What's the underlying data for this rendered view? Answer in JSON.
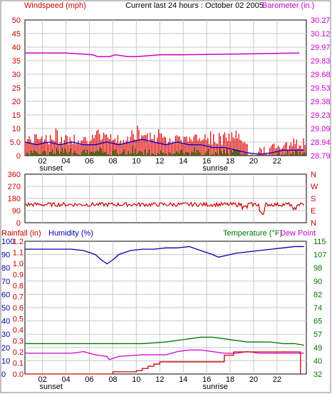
{
  "header": {
    "left_label": "Windspeed (mph)",
    "title": "Current last 24 hours : October 02 2005",
    "right_label": "Barometer (in.)"
  },
  "colors": {
    "windspeed": "#dd0000",
    "windgust_fill": "#007700",
    "wind_avg": "#0000cc",
    "barometer": "#cc00cc",
    "direction": "#cc0000",
    "humidity": "#0000aa",
    "temperature": "#007700",
    "dewpoint": "#cc00cc",
    "rainfall": "#cc0000",
    "grid": "#c8c8c8"
  },
  "chart_data": [
    {
      "type": "line",
      "name": "windspeed-barometer",
      "x_ticks": [
        "02",
        "04",
        "06",
        "08",
        "10",
        "12",
        "14",
        "16",
        "18",
        "20",
        "22"
      ],
      "x_sublabels": [
        {
          "at": "02",
          "text": "sunset"
        },
        {
          "at": "16",
          "text": "sunrise"
        }
      ],
      "left_axis": {
        "title": "Windspeed (mph)",
        "ticks": [
          "50",
          "45",
          "40",
          "35",
          "30",
          "25",
          "20",
          "15",
          "10",
          "5.0",
          "0"
        ],
        "range": [
          0,
          50
        ]
      },
      "right_axis": {
        "title": "Barometer (in.)",
        "ticks": [
          "30.27",
          "30.12",
          "29.97",
          "29.83",
          "29.68",
          "29.53",
          "29.38",
          "29.23",
          "29.09",
          "28.94",
          "28.79"
        ],
        "range": [
          28.79,
          30.27
        ]
      },
      "barometer": {
        "x": [
          0,
          3.5,
          5.8,
          6.2,
          7.2,
          7.7,
          8.8,
          9.5,
          11.5,
          13,
          13.2,
          19,
          23.4
        ],
        "y": [
          29.91,
          29.91,
          29.89,
          29.87,
          29.87,
          29.89,
          29.87,
          29.87,
          29.89,
          29.89,
          29.89,
          29.9,
          29.91
        ]
      },
      "wind_avg": {
        "x": [
          0,
          1,
          2,
          3,
          4,
          5,
          6,
          7,
          8,
          9,
          10,
          11,
          12,
          13,
          14,
          15,
          16,
          17,
          18,
          19,
          20,
          21,
          22,
          23,
          23.8
        ],
        "y": [
          5,
          4,
          5,
          4,
          5,
          4,
          4,
          5,
          4,
          5,
          6,
          5,
          4,
          5,
          4,
          4,
          3,
          3,
          2,
          1,
          0.5,
          1,
          2,
          2,
          2
        ]
      }
    },
    {
      "type": "line",
      "name": "wind-direction",
      "left_axis": {
        "ticks": [
          "360",
          "270",
          "180",
          "90",
          "0"
        ],
        "range": [
          0,
          360
        ]
      },
      "right_axis": {
        "ticks": [
          "N",
          "W",
          "S",
          "E",
          "N"
        ]
      },
      "series": [
        {
          "x": [
            0,
            23.8
          ],
          "y": [
            135,
            135
          ],
          "note": "noisy around 135 deg"
        }
      ]
    },
    {
      "type": "line",
      "name": "rain-humidity-temperature",
      "x_ticks": [
        "02",
        "04",
        "06",
        "08",
        "10",
        "12",
        "14",
        "16",
        "18",
        "20",
        "22"
      ],
      "x_sublabels": [
        {
          "at": "02",
          "text": "sunset"
        },
        {
          "at": "16",
          "text": "sunrise"
        }
      ],
      "headers": {
        "rainfall": "Rainfall (in)",
        "humidity": "Humidity (%)",
        "temperature": "Temperature (°F)",
        "dewpoint": "Dew Point"
      },
      "left_axis_humidity": {
        "ticks": [
          "100",
          "90",
          "80",
          "70",
          "60",
          "50",
          "40",
          "30",
          "20",
          "10",
          "0"
        ],
        "range": [
          0,
          100
        ]
      },
      "left_axis_rain": {
        "ticks": [
          "1.2",
          "1.1",
          "1.0",
          "0.9",
          "0.8",
          "0.7",
          "0.6",
          "0.5",
          "0.4",
          "0.3",
          "0.2",
          "0.1",
          "0.0"
        ],
        "range": [
          0,
          1.2
        ]
      },
      "right_axis": {
        "ticks": [
          "115",
          "107",
          "98",
          "90",
          "82",
          "74",
          "65",
          "57",
          "49",
          "40",
          "32"
        ],
        "range": [
          32,
          115
        ]
      },
      "humidity": {
        "x": [
          0,
          2,
          4,
          5,
          6,
          6.5,
          7,
          7.5,
          8,
          9,
          10,
          11,
          12,
          13,
          14,
          15,
          16,
          16.5,
          17,
          18,
          19,
          20,
          21,
          22,
          23,
          23.8
        ],
        "y": [
          94,
          94,
          94,
          93,
          90,
          86,
          83,
          86,
          90,
          93,
          94,
          94,
          95,
          95,
          96,
          93,
          90,
          88,
          89,
          91,
          92,
          93,
          94,
          95,
          96,
          96
        ]
      },
      "temperature": {
        "x": [
          0,
          2,
          4,
          6,
          8,
          10,
          12,
          13,
          14,
          15,
          16,
          17,
          18,
          19,
          20,
          21,
          22,
          23,
          23.8
        ],
        "y": [
          51,
          51,
          51,
          51,
          51,
          51,
          52,
          53,
          54,
          55,
          55,
          54,
          53,
          52,
          52,
          52,
          51,
          51,
          50
        ]
      },
      "dewpoint": {
        "x": [
          0,
          2,
          4,
          5,
          6,
          7,
          7.2,
          8,
          10,
          12,
          13,
          14,
          15,
          16,
          17,
          18,
          19,
          20,
          22,
          23.8
        ],
        "y": [
          45,
          45,
          45,
          46,
          44,
          43,
          41,
          43,
          44,
          44,
          46,
          47,
          47,
          46,
          45,
          45,
          46,
          45,
          45,
          45
        ]
      },
      "rainfall": {
        "x": [
          0,
          7.5,
          7.5,
          9.5,
          9.5,
          10,
          10,
          10.5,
          10.5,
          11,
          11,
          11.5,
          11.5,
          17,
          17,
          17.8,
          17.8,
          23.5,
          23.5
        ],
        "y": [
          0,
          0,
          0.02,
          0.02,
          0.03,
          0.03,
          0.05,
          0.05,
          0.07,
          0.07,
          0.09,
          0.09,
          0.11,
          0.11,
          0.17,
          0.17,
          0.2,
          0.2,
          0
        ]
      }
    }
  ]
}
